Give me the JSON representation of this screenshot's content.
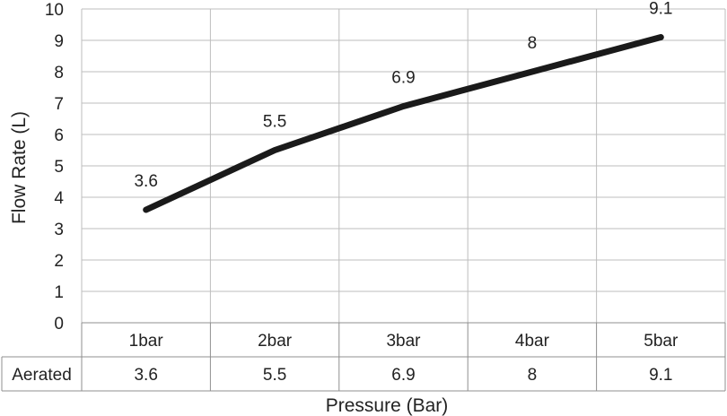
{
  "chart_data": {
    "type": "line",
    "categories": [
      "1bar",
      "2bar",
      "3bar",
      "4bar",
      "5bar"
    ],
    "series": [
      {
        "name": "Aerated",
        "values": [
          3.6,
          5.5,
          6.9,
          8,
          9.1
        ],
        "color": "#1a1a1a"
      }
    ],
    "data_labels": [
      "3.6",
      "5.5",
      "6.9",
      "8",
      "9.1"
    ],
    "table_values": [
      "3.6",
      "5.5",
      "6.9",
      "8",
      "9.1"
    ],
    "xlabel": "Pressure (Bar)",
    "ylabel": "Flow Rate (L)",
    "ylim": [
      0,
      10
    ],
    "y_ticks": [
      "0",
      "1",
      "2",
      "3",
      "4",
      "5",
      "6",
      "7",
      "8",
      "9",
      "10"
    ],
    "grid": true,
    "data_table": true,
    "legend": "none"
  }
}
